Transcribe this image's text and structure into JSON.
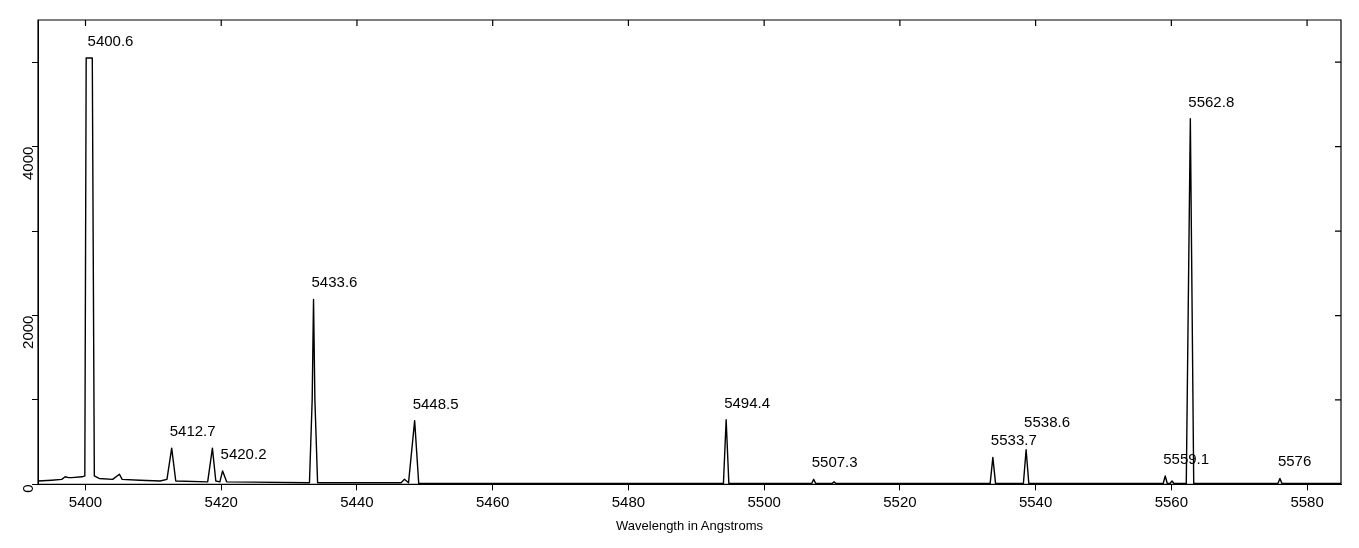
{
  "chart_data": {
    "type": "line",
    "xlabel": "Wavelength in Angstroms",
    "legend": false,
    "grid": false,
    "marker": "none",
    "line_style": "solid",
    "xlim": [
      5393,
      5585
    ],
    "xticks": [
      5400,
      5420,
      5440,
      5460,
      5480,
      5500,
      5520,
      5540,
      5560,
      5580
    ],
    "ylim": [
      0,
      5500
    ],
    "yticks": [
      0,
      {
        "value": 1000,
        "label": null
      },
      2000,
      {
        "value": 3000,
        "label": null
      },
      4000,
      {
        "value": 5000,
        "label": null
      }
    ],
    "series": [
      {
        "color": "#000000",
        "x": [
          5393,
          5395,
          5396.5,
          5397,
          5397.5,
          5398,
          5399.5,
          5399.9,
          5400.1,
          5400.6,
          5401,
          5401.3,
          5402,
          5404,
          5405,
          5405.4,
          5408,
          5411,
          5412,
          5412.7,
          5413.3,
          5418,
          5418.7,
          5419.2,
          5419.8,
          5420.2,
          5420.8,
          5433,
          5433.4,
          5433.6,
          5433.8,
          5434.2,
          5446.5,
          5447,
          5447.6,
          5448.5,
          5449.1,
          5494,
          5494.4,
          5494.8,
          5507,
          5507.3,
          5507.6,
          5510,
          5510.3,
          5510.6,
          5533.3,
          5533.7,
          5534.1,
          5538.2,
          5538.6,
          5539,
          5558.8,
          5559.1,
          5559.4,
          5559.8,
          5560.1,
          5560.4,
          5562.2,
          5562.8,
          5563.3,
          5575.7,
          5576,
          5576.3,
          5585
        ],
        "values": [
          40,
          50,
          60,
          90,
          80,
          80,
          90,
          100,
          5050,
          5050,
          5050,
          100,
          70,
          60,
          120,
          60,
          50,
          40,
          60,
          430,
          40,
          30,
          430,
          40,
          30,
          160,
          30,
          20,
          1000,
          2190,
          1000,
          20,
          20,
          60,
          20,
          755,
          10,
          10,
          765,
          10,
          10,
          60,
          10,
          10,
          30,
          10,
          10,
          320,
          10,
          10,
          410,
          10,
          10,
          100,
          10,
          10,
          40,
          10,
          10,
          4330,
          10,
          10,
          70,
          10,
          10
        ]
      }
    ],
    "annotations": [
      {
        "text": "5400.6",
        "x": 5400.6,
        "y": 5050
      },
      {
        "text": "5412.7",
        "x": 5412.7,
        "y": 430
      },
      {
        "text": "5420.2",
        "x": 5420.2,
        "y": 160
      },
      {
        "text": "5433.6",
        "x": 5433.6,
        "y": 2190
      },
      {
        "text": "5448.5",
        "x": 5448.5,
        "y": 755
      },
      {
        "text": "5494.4",
        "x": 5494.4,
        "y": 765
      },
      {
        "text": "5507.3",
        "x": 5507.3,
        "y": 60
      },
      {
        "text": "5533.7",
        "x": 5533.7,
        "y": 320
      },
      {
        "text": "5538.6",
        "x": 5538.6,
        "y": 410
      },
      {
        "text": "5559.1",
        "x": 5559.1,
        "y": 100
      },
      {
        "text": "5562.8",
        "x": 5562.8,
        "y": 4330
      },
      {
        "text": "5576",
        "x": 5576,
        "y": 70
      }
    ]
  }
}
